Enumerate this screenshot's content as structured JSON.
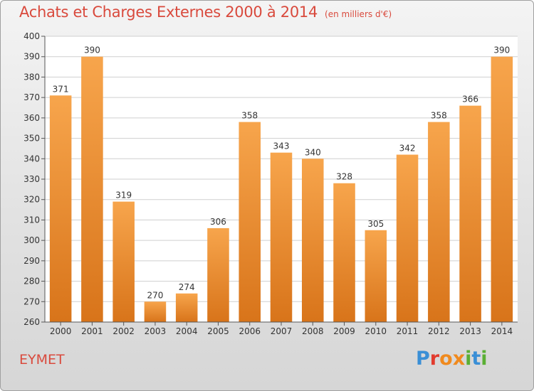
{
  "header": {
    "title": "Achats et Charges Externes 2000 à 2014",
    "subtitle": "(en milliers d'€)"
  },
  "footer": {
    "place": "EYMET",
    "logo_text": "Proxiti"
  },
  "colors": {
    "title": "#d94a3d",
    "bar_light": "#f7a54c",
    "bar_dark": "#d8741a"
  },
  "chart_data": {
    "type": "bar",
    "title": "Achats et Charges Externes 2000 à 2014",
    "subtitle": "(en milliers d'€)",
    "categories": [
      "2000",
      "2001",
      "2002",
      "2003",
      "2004",
      "2005",
      "2006",
      "2007",
      "2008",
      "2009",
      "2010",
      "2011",
      "2012",
      "2013",
      "2014"
    ],
    "values": [
      371,
      390,
      319,
      270,
      274,
      306,
      358,
      343,
      340,
      328,
      305,
      342,
      358,
      366,
      390
    ],
    "ylim": [
      260,
      400
    ],
    "yticks": [
      260,
      270,
      280,
      290,
      300,
      310,
      320,
      330,
      340,
      350,
      360,
      370,
      380,
      390,
      400
    ],
    "grid": true,
    "data_labels": true
  }
}
